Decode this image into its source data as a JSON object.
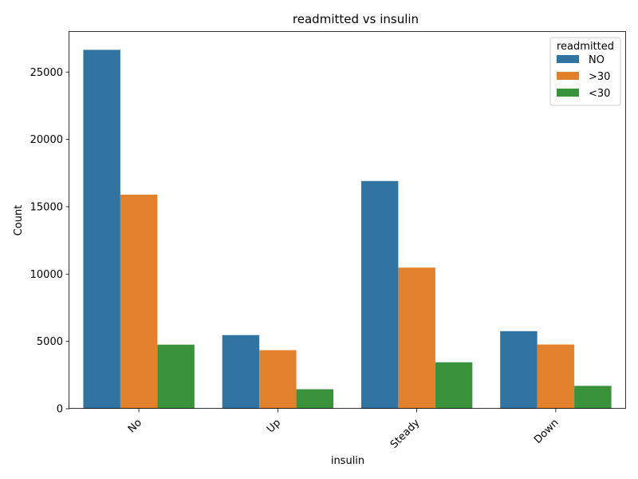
{
  "chart_data": {
    "type": "bar",
    "title": "readmitted vs insulin",
    "xlabel": "insulin",
    "ylabel": "Count",
    "categories": [
      "No",
      "Up",
      "Steady",
      "Down"
    ],
    "series": [
      {
        "name": "NO",
        "color": "#3274a1",
        "values": [
          26650,
          5470,
          16910,
          5760
        ]
      },
      {
        "name": ">30",
        "color": "#e1812c",
        "values": [
          15900,
          4350,
          10480,
          4770
        ]
      },
      {
        "name": "<30",
        "color": "#3a923a",
        "values": [
          4760,
          1450,
          3450,
          1700
        ]
      }
    ],
    "ylim": [
      0,
      27980
    ],
    "yticks": [
      0,
      5000,
      10000,
      15000,
      20000,
      25000
    ],
    "legend": {
      "title": "readmitted",
      "placement": "top-right"
    },
    "grid": false,
    "xtick_rotation": 45
  }
}
